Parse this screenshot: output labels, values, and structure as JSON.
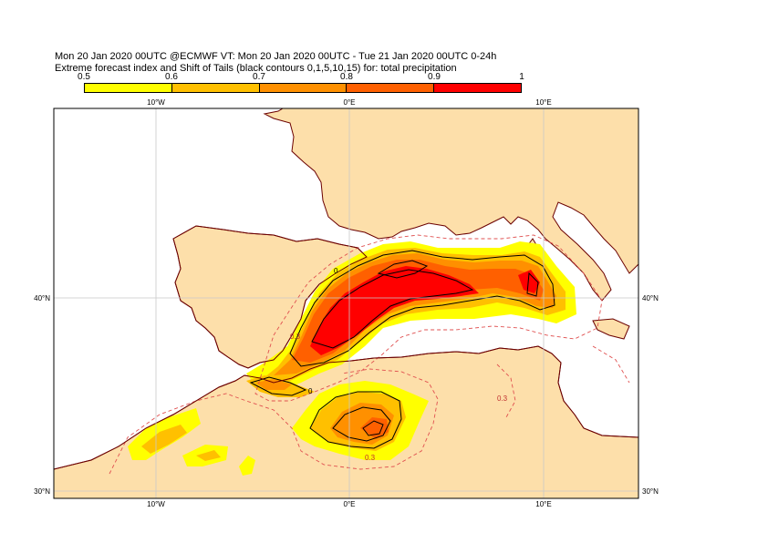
{
  "title": {
    "line1": "Mon 20 Jan 2020 00UTC @ECMWF VT: Mon 20 Jan 2020 00UTC - Tue 21 Jan 2020 00UTC  0-24h",
    "line2": "Extreme forecast index and Shift of Tails (black contours 0,1,5,10,15) for: total precipitation"
  },
  "colorbar": {
    "labels": [
      "0.5",
      "0.6",
      "0.7",
      "0.8",
      "0.9",
      "1"
    ],
    "colors": [
      "#ffff00",
      "#ffc000",
      "#ff9000",
      "#ff6000",
      "#ff0000"
    ]
  },
  "colors": {
    "land": "#fddfaa",
    "sea": "#ffffff",
    "coast": "#6b0000",
    "grid": "#c8c8c8",
    "dashed_contour": "#e05050",
    "sot_contour": "#000000"
  },
  "axes": {
    "top": [
      "10°W",
      "0°E",
      "10°E"
    ],
    "bottom": [
      "10°W",
      "0°E",
      "10°E"
    ],
    "left": [
      "40°N",
      "30°N"
    ],
    "right": [
      "40°N",
      "30°N"
    ]
  },
  "contour_labels": [
    "0",
    "0",
    "0.3",
    "0.3",
    "0.3"
  ]
}
